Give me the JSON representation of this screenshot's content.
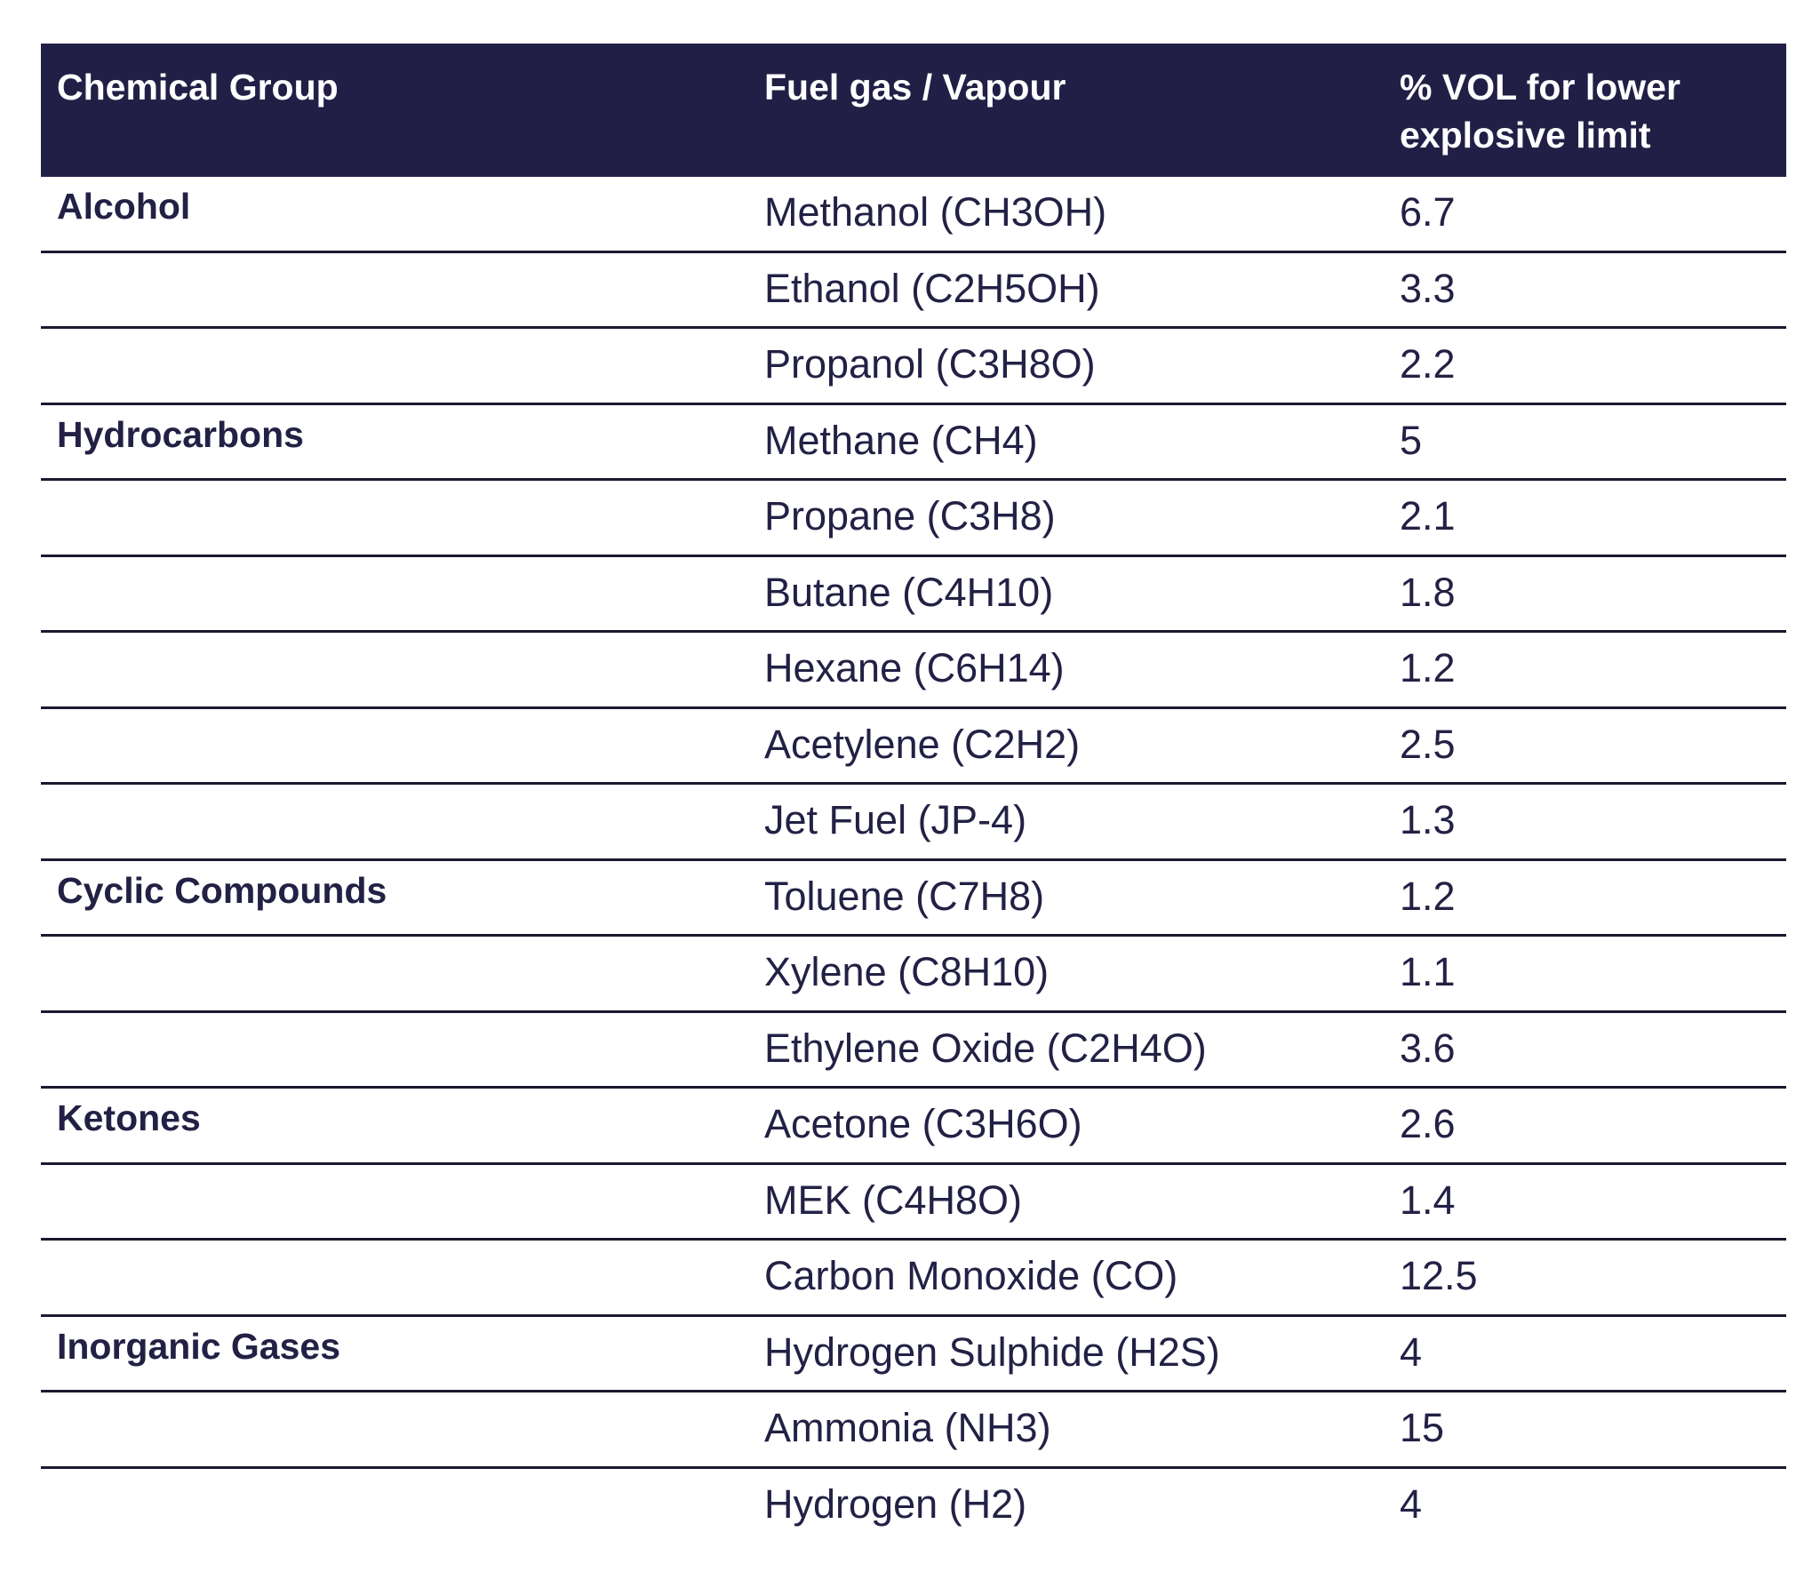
{
  "table": {
    "headers": [
      "Chemical Group",
      "Fuel gas / Vapour",
      "% VOL for lower explosive limit"
    ],
    "rows": [
      {
        "group": "Alcohol",
        "gas": "Methanol (CH3OH)",
        "value": "6.7"
      },
      {
        "group": "",
        "gas": "Ethanol (C2H5OH)",
        "value": "3.3"
      },
      {
        "group": "",
        "gas": "Propanol (C3H8O)",
        "value": "2.2"
      },
      {
        "group": "Hydrocarbons",
        "gas": "Methane (CH4)",
        "value": "5"
      },
      {
        "group": "",
        "gas": "Propane (C3H8)",
        "value": "2.1"
      },
      {
        "group": "",
        "gas": "Butane (C4H10)",
        "value": "1.8"
      },
      {
        "group": "",
        "gas": "Hexane (C6H14)",
        "value": "1.2"
      },
      {
        "group": "",
        "gas": "Acetylene (C2H2)",
        "value": "2.5"
      },
      {
        "group": "",
        "gas": "Jet Fuel (JP-4)",
        "value": "1.3"
      },
      {
        "group": "Cyclic Compounds",
        "gas": "Toluene (C7H8)",
        "value": "1.2"
      },
      {
        "group": "",
        "gas": "Xylene (C8H10)",
        "value": "1.1"
      },
      {
        "group": "",
        "gas": "Ethylene Oxide (C2H4O)",
        "value": "3.6"
      },
      {
        "group": "Ketones",
        "gas": "Acetone (C3H6O)",
        "value": "2.6"
      },
      {
        "group": "",
        "gas": "MEK (C4H8O)",
        "value": "1.4"
      },
      {
        "group": "",
        "gas": "Carbon Monoxide (CO)",
        "value": "12.5"
      },
      {
        "group": "Inorganic Gases",
        "gas": "Hydrogen Sulphide (H2S)",
        "value": "4"
      },
      {
        "group": "",
        "gas": "Ammonia (NH3)",
        "value": "15"
      },
      {
        "group": "",
        "gas": "Hydrogen (H2)",
        "value": "4"
      }
    ]
  },
  "colors": {
    "header_background": "#221f47",
    "header_text": "#ffffff",
    "body_text": "#222145",
    "rule": "#1a1a2e"
  }
}
